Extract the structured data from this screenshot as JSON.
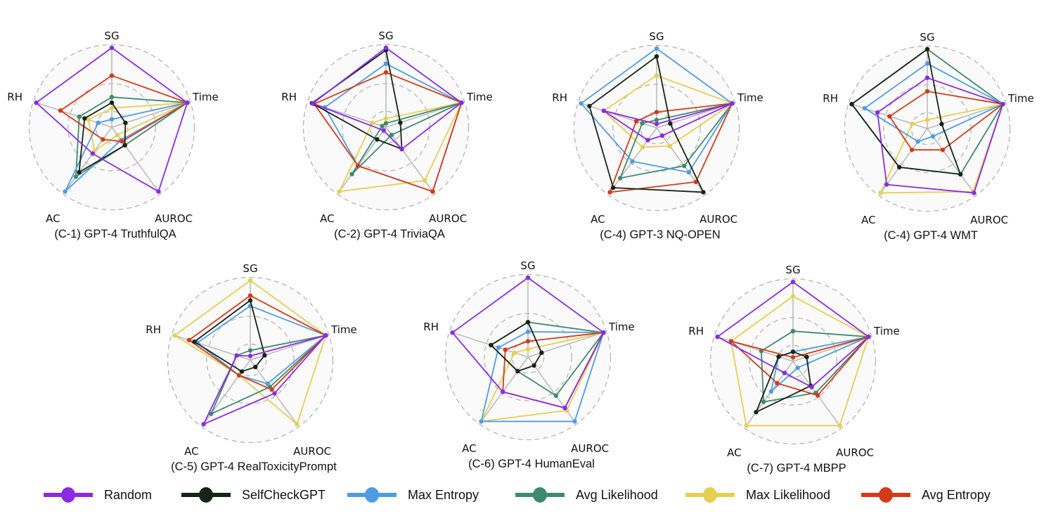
{
  "chart_data": {
    "type": "radar",
    "axes": [
      "SG",
      "Time",
      "AUROC",
      "AC",
      "RH"
    ],
    "range": [
      0,
      1
    ],
    "grid": "dashed-circles",
    "legend_placement": "bottom",
    "series_styles": [
      {
        "name": "Random",
        "color": "#8a2be2"
      },
      {
        "name": "SelfCheckGPT",
        "color": "#162418"
      },
      {
        "name": "Max Entropy",
        "color": "#4f9de0"
      },
      {
        "name": "Avg Likelihood",
        "color": "#3f8a6e"
      },
      {
        "name": "Max Likelihood",
        "color": "#e5cf52"
      },
      {
        "name": "Avg Entropy",
        "color": "#d43a17"
      }
    ],
    "charts": [
      {
        "title": "(C-1) GPT-4 TruthfulQA",
        "series": [
          {
            "name": "Random",
            "values": [
              1.0,
              1.0,
              1.0,
              0.41,
              1.0
            ]
          },
          {
            "name": "SelfCheckGPT",
            "values": [
              0.31,
              0.18,
              0.28,
              0.7,
              0.36
            ]
          },
          {
            "name": "Max Entropy",
            "values": [
              0.1,
              1.0,
              0.2,
              1.0,
              0.18
            ]
          },
          {
            "name": "Avg Likelihood",
            "values": [
              0.38,
              1.0,
              0.28,
              0.77,
              0.43
            ]
          },
          {
            "name": "Max Likelihood",
            "values": [
              0.24,
              1.0,
              0.12,
              0.37,
              0.31
            ]
          },
          {
            "name": "Avg Entropy",
            "values": [
              0.65,
              1.0,
              0.22,
              0.19,
              0.68
            ]
          }
        ]
      },
      {
        "title": "(C-2) GPT-4 TriviaQA",
        "series": [
          {
            "name": "Random",
            "values": [
              1.0,
              1.0,
              0.34,
              0.05,
              0.97
            ]
          },
          {
            "name": "SelfCheckGPT",
            "values": [
              0.97,
              0.19,
              0.34,
              0.19,
              0.98
            ]
          },
          {
            "name": "Max Entropy",
            "values": [
              0.8,
              1.0,
              1.0,
              0.6,
              0.81
            ]
          },
          {
            "name": "Avg Likelihood",
            "values": [
              0.05,
              1.0,
              0.12,
              0.73,
              0.05
            ]
          },
          {
            "name": "Max Likelihood",
            "values": [
              0.11,
              1.0,
              0.83,
              1.0,
              0.18
            ]
          },
          {
            "name": "Avg Entropy",
            "values": [
              0.69,
              1.0,
              1.0,
              0.6,
              0.95
            ]
          }
        ]
      },
      {
        "title": "(C-4) GPT-3 NQ-OPEN",
        "series": [
          {
            "name": "Random",
            "values": [
              0.05,
              1.0,
              0.12,
              0.19,
              0.7
            ]
          },
          {
            "name": "SelfCheckGPT",
            "values": [
              0.9,
              0.18,
              1.0,
              0.93,
              0.89
            ]
          },
          {
            "name": "Max Entropy",
            "values": [
              1.0,
              1.0,
              0.69,
              0.52,
              1.0
            ]
          },
          {
            "name": "Avg Likelihood",
            "values": [
              0.1,
              1.0,
              0.59,
              0.78,
              0.19
            ]
          },
          {
            "name": "Max Likelihood",
            "values": [
              0.66,
              1.0,
              0.28,
              0.3,
              0.7
            ]
          },
          {
            "name": "Avg Entropy",
            "values": [
              0.2,
              1.0,
              0.84,
              1.0,
              0.27
            ]
          }
        ]
      },
      {
        "title": "(C-4) GPT-4 WMT",
        "series": [
          {
            "name": "Random",
            "values": [
              0.64,
              1.0,
              1.0,
              0.87,
              0.66
            ]
          },
          {
            "name": "SelfCheckGPT",
            "values": [
              1.0,
              0.19,
              0.71,
              0.6,
              1.0
            ]
          },
          {
            "name": "Max Entropy",
            "values": [
              0.82,
              1.0,
              0.12,
              0.2,
              0.83
            ]
          },
          {
            "name": "Avg Likelihood",
            "values": [
              1.0,
              1.0,
              0.71,
              0.6,
              1.0
            ]
          },
          {
            "name": "Max Likelihood",
            "values": [
              0.11,
              1.0,
              0.98,
              1.0,
              0.2
            ]
          },
          {
            "name": "Avg Entropy",
            "values": [
              0.47,
              1.0,
              0.33,
              0.33,
              0.5
            ]
          }
        ]
      },
      {
        "title": "(C-5) GPT-4 RealToxicityPrompt",
        "series": [
          {
            "name": "Random",
            "values": [
              0.05,
              1.0,
              0.52,
              1.0,
              0.18
            ]
          },
          {
            "name": "SelfCheckGPT",
            "values": [
              0.75,
              0.19,
              0.11,
              0.18,
              0.74
            ]
          },
          {
            "name": "Max Entropy",
            "values": [
              0.68,
              1.0,
              0.37,
              0.24,
              0.7
            ]
          },
          {
            "name": "Avg Likelihood",
            "values": [
              0.12,
              1.0,
              0.42,
              0.84,
              0.18
            ]
          },
          {
            "name": "Max Likelihood",
            "values": [
              1.0,
              1.0,
              1.0,
              0.24,
              1.0
            ]
          },
          {
            "name": "Avg Entropy",
            "values": [
              0.81,
              1.0,
              0.46,
              0.24,
              0.81
            ]
          }
        ]
      },
      {
        "title": "(C-6) GPT-4 HumanEval",
        "series": [
          {
            "name": "Random",
            "values": [
              1.0,
              1.0,
              0.79,
              0.54,
              1.0
            ]
          },
          {
            "name": "SelfCheckGPT",
            "values": [
              0.44,
              0.18,
              0.13,
              0.22,
              0.49
            ]
          },
          {
            "name": "Max Entropy",
            "values": [
              0.32,
              1.0,
              1.0,
              1.0,
              0.39
            ]
          },
          {
            "name": "Avg Likelihood",
            "values": [
              0.44,
              1.0,
              0.6,
              0.22,
              0.49
            ]
          },
          {
            "name": "Max Likelihood",
            "values": [
              0.1,
              1.0,
              0.83,
              1.0,
              0.18
            ]
          },
          {
            "name": "Avg Entropy",
            "values": [
              0.2,
              1.0,
              0.79,
              0.54,
              0.3
            ]
          }
        ]
      },
      {
        "title": "(C-7) GPT-4 MBPP",
        "series": [
          {
            "name": "Random",
            "values": [
              1.0,
              1.0,
              0.4,
              0.18,
              1.0
            ]
          },
          {
            "name": "SelfCheckGPT",
            "values": [
              0.12,
              0.18,
              0.38,
              0.79,
              0.19
            ]
          },
          {
            "name": "Max Entropy",
            "values": [
              0.12,
              1.0,
              0.1,
              0.47,
              0.19
            ]
          },
          {
            "name": "Avg Likelihood",
            "values": [
              0.38,
              1.0,
              0.49,
              0.63,
              0.42
            ]
          },
          {
            "name": "Max Likelihood",
            "values": [
              0.82,
              1.0,
              1.0,
              1.0,
              0.82
            ]
          },
          {
            "name": "Avg Entropy",
            "values": [
              0.05,
              1.0,
              0.53,
              0.34,
              0.82
            ]
          }
        ]
      }
    ]
  },
  "legend": [
    {
      "label": "Random",
      "color": "#8a2be2"
    },
    {
      "label": "SelfCheckGPT",
      "color": "#162418"
    },
    {
      "label": "Max Entropy",
      "color": "#4f9de0"
    },
    {
      "label": "Avg Likelihood",
      "color": "#3f8a6e"
    },
    {
      "label": "Max Likelihood",
      "color": "#e5cf52"
    },
    {
      "label": "Avg Entropy",
      "color": "#d43a17"
    }
  ]
}
